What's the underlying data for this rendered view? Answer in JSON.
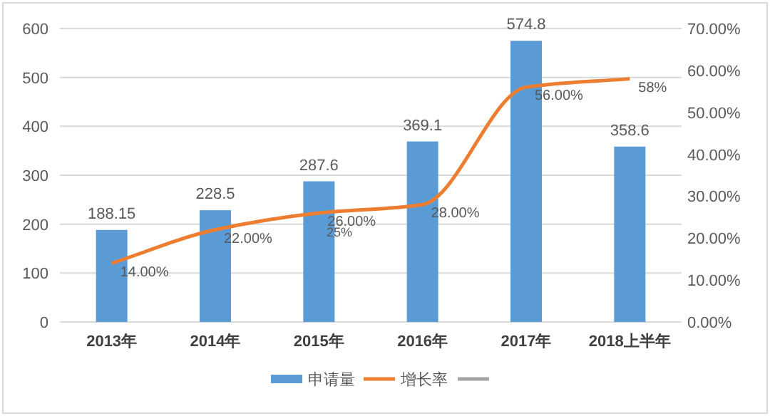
{
  "chart_data": {
    "type": "bar",
    "categories": [
      "2013年",
      "2014年",
      "2015年",
      "2016年",
      "2017年",
      "2018上半年"
    ],
    "series": [
      {
        "name": "申请量",
        "color": "#5b9bd5",
        "values": [
          188.15,
          228.5,
          287.6,
          369.1,
          574.8,
          358.6
        ],
        "data_labels": true
      },
      {
        "name": "增长率",
        "type": "line",
        "axis": "y2",
        "color": "#ed7d31",
        "values": [
          14,
          22,
          26,
          28,
          56,
          58
        ],
        "value_labels": [
          "14.00%",
          "22.00%",
          "26.00%",
          "28.00%",
          "56.00%",
          "58%"
        ]
      },
      {
        "type": "line",
        "axis": "y2",
        "color": "#a5a5a5",
        "values": [
          null,
          null,
          null,
          null,
          null,
          null
        ]
      }
    ],
    "annotations": [
      "25%"
    ],
    "ylim": [
      0,
      600
    ],
    "yticks": [
      0,
      100,
      200,
      300,
      400,
      500,
      600
    ],
    "y2lim": [
      0,
      70
    ],
    "y2ticks": [
      {
        "value": 0,
        "label": "0.00%"
      },
      {
        "value": 10,
        "label": "10.00%"
      },
      {
        "value": 20,
        "label": "20.00%"
      },
      {
        "value": 30,
        "label": "30.00%"
      },
      {
        "value": 40,
        "label": "40.00%"
      },
      {
        "value": 50,
        "label": "50.00%"
      },
      {
        "value": 60,
        "label": "60.00%"
      },
      {
        "value": 70,
        "label": "70.00%"
      }
    ],
    "grid": "y",
    "legend": "bottom"
  }
}
